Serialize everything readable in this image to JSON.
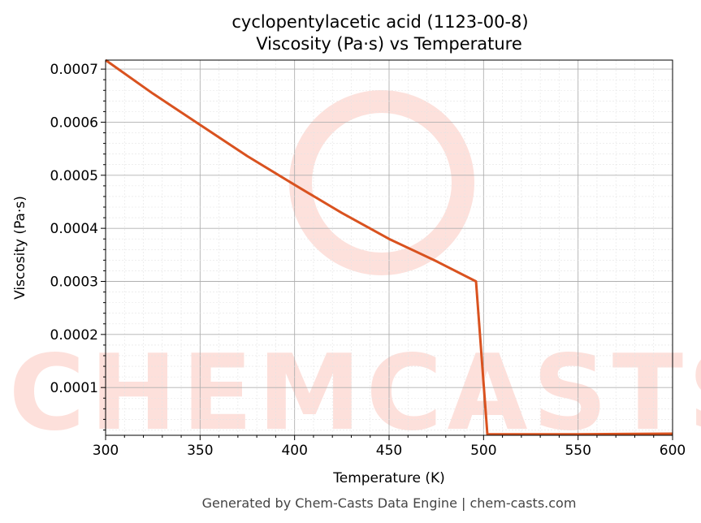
{
  "chart_data": {
    "type": "line",
    "title": "cyclopentylacetic acid (1123-00-8)",
    "subtitle": "Viscosity (Pa·s) vs Temperature",
    "xlabel": "Temperature (K)",
    "ylabel": "Viscosity (Pa·s)",
    "xlim": [
      300,
      600
    ],
    "ylim": [
      1e-05,
      0.000717
    ],
    "xticks": [
      300,
      350,
      400,
      450,
      500,
      550,
      600
    ],
    "yticks": [
      0.0001,
      0.0002,
      0.0003,
      0.0004,
      0.0005,
      0.0006,
      0.0007
    ],
    "ytick_labels": [
      "0.0001",
      "0.0002",
      "0.0003",
      "0.0004",
      "0.0005",
      "0.0006",
      "0.0007"
    ],
    "grid": true,
    "series": [
      {
        "name": "Viscosity",
        "color": "#d9521f",
        "x": [
          300,
          325,
          350,
          375,
          400,
          425,
          450,
          475,
          496,
          502,
          550,
          600
        ],
        "y": [
          0.000717,
          0.000654,
          0.000595,
          0.000536,
          0.000482,
          0.000429,
          0.00038,
          0.000338,
          0.0003,
          1.2e-05,
          1.2e-05,
          1.3e-05
        ]
      }
    ],
    "watermark": "CHEMCASTS",
    "footer": "Generated by Chem-Casts Data Engine | chem-casts.com"
  }
}
